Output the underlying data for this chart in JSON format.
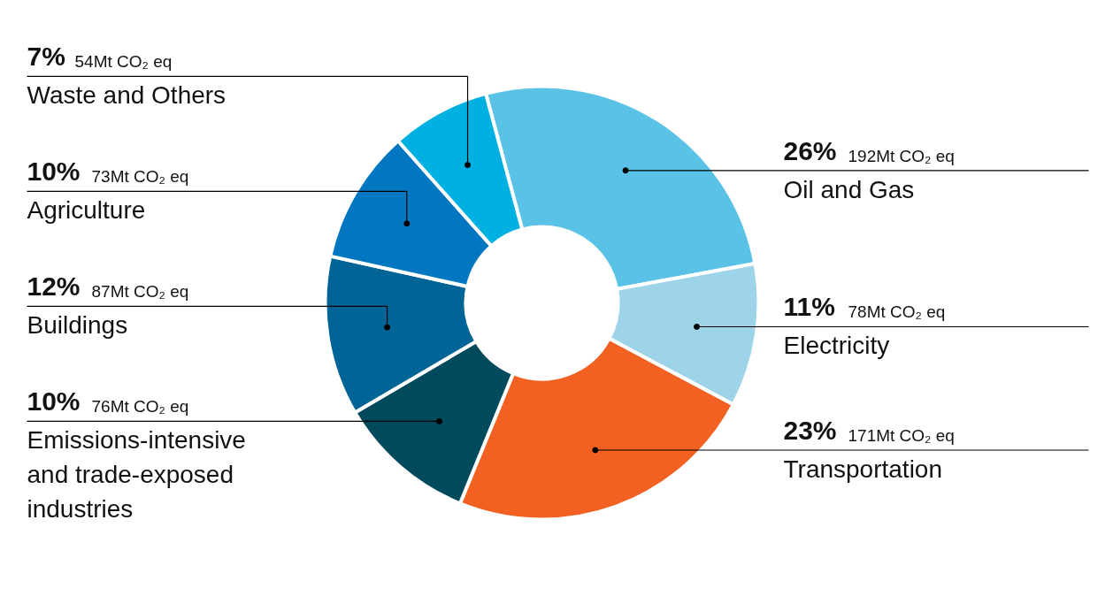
{
  "chart_data": {
    "type": "donut",
    "categories": [
      "Oil and Gas",
      "Electricity",
      "Transportation",
      "Emissions-intensive and trade-exposed industries",
      "Buildings",
      "Agriculture",
      "Waste and Others"
    ],
    "values": [
      192,
      78,
      171,
      76,
      87,
      73,
      54
    ],
    "value_labels": [
      "26% 192Mt CO₂ eq",
      "11% 78Mt CO₂ eq",
      "23% 171Mt CO₂ eq",
      "10% 76Mt CO₂ eq",
      "12% 87Mt CO₂ eq",
      "10% 73Mt CO₂ eq",
      "7% 54Mt CO₂ eq"
    ],
    "colors": [
      "#5bc2e7",
      "#9dd4ea",
      "#f26122",
      "#004a5e",
      "#006496",
      "#0077c0",
      "#00b0e0"
    ]
  }
}
